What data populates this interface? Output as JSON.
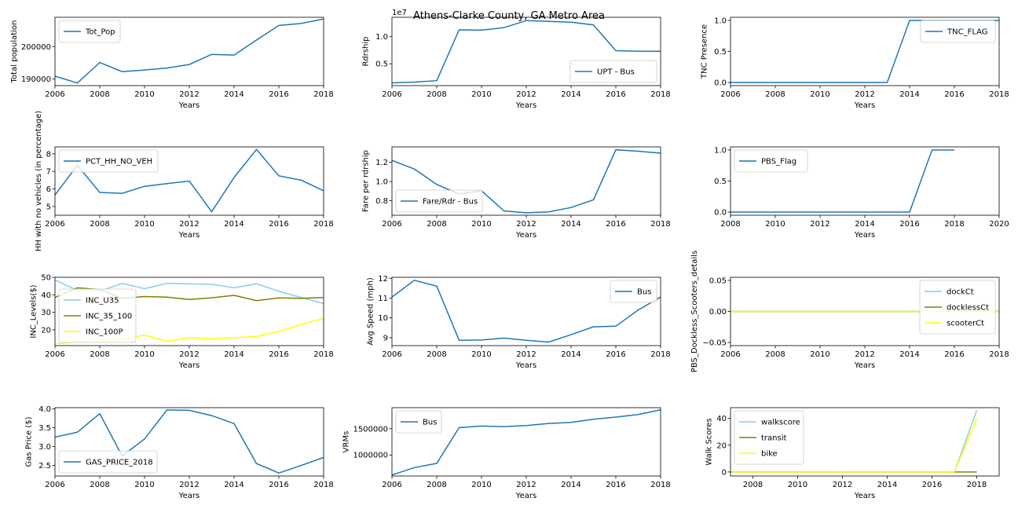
{
  "figure": {
    "title": "Athens-Clarke County, GA Metro Area"
  },
  "chart_data": [
    {
      "type": "line",
      "xlabel": "Years",
      "ylabel": "Total population",
      "xlim": [
        2006,
        2018
      ],
      "ylim": [
        188000,
        209000
      ],
      "xticks": [
        2006,
        2008,
        2010,
        2012,
        2014,
        2016,
        2018
      ],
      "yticks": [
        190000,
        200000
      ],
      "yticklabels": [
        "190000",
        "200000"
      ],
      "offset_label": "",
      "legend": "upper left",
      "series": [
        {
          "name": "Tot_Pop",
          "color": "#1f77b4",
          "x": [
            2006,
            2007,
            2008,
            2009,
            2010,
            2011,
            2012,
            2013,
            2014,
            2015,
            2016,
            2017,
            2018
          ],
          "y": [
            190900,
            188800,
            195100,
            192300,
            192800,
            193400,
            194500,
            197600,
            197400,
            202000,
            206500,
            207100,
            208500
          ]
        }
      ]
    },
    {
      "type": "line",
      "xlabel": "Years",
      "ylabel": "Rdrship",
      "xlim": [
        2006,
        2018
      ],
      "ylim": [
        0.1,
        1.35
      ],
      "xticks": [
        2006,
        2008,
        2010,
        2012,
        2014,
        2016,
        2018
      ],
      "yticks": [
        0.5,
        1.0
      ],
      "yticklabels": [
        "0.5",
        "1.0"
      ],
      "offset_label": "1e7",
      "legend": "lower right",
      "series": [
        {
          "name": "UPT - Bus",
          "color": "#1f77b4",
          "x": [
            2006,
            2007,
            2008,
            2009,
            2010,
            2011,
            2012,
            2013,
            2014,
            2015,
            2016,
            2017,
            2018
          ],
          "y": [
            0.15,
            0.165,
            0.19,
            1.12,
            1.115,
            1.16,
            1.29,
            1.275,
            1.26,
            1.21,
            0.74,
            0.73,
            0.73
          ]
        }
      ]
    },
    {
      "type": "line",
      "xlabel": "Years",
      "ylabel": "TNC Presence",
      "xlim": [
        2006,
        2018
      ],
      "ylim": [
        -0.05,
        1.05
      ],
      "xticks": [
        2006,
        2008,
        2010,
        2012,
        2014,
        2016,
        2018
      ],
      "yticks": [
        0.0,
        0.5,
        1.0
      ],
      "yticklabels": [
        "0.0",
        "0.5",
        "1.0"
      ],
      "offset_label": "",
      "legend": "upper right",
      "series": [
        {
          "name": "TNC_FLAG",
          "color": "#1f77b4",
          "x": [
            2006,
            2007,
            2008,
            2009,
            2010,
            2011,
            2012,
            2013,
            2014,
            2015,
            2016,
            2017,
            2018
          ],
          "y": [
            0,
            0,
            0,
            0,
            0,
            0,
            0,
            0,
            1,
            1,
            1,
            1,
            1
          ]
        }
      ]
    },
    {
      "type": "line",
      "xlabel": "Years",
      "ylabel": "HH with no vehicles (in percentage)",
      "xlim": [
        2006,
        2018
      ],
      "ylim": [
        4.5,
        8.4
      ],
      "xticks": [
        2006,
        2008,
        2010,
        2012,
        2014,
        2016,
        2018
      ],
      "yticks": [
        5,
        6,
        7,
        8
      ],
      "yticklabels": [
        "5",
        "6",
        "7",
        "8"
      ],
      "offset_label": "",
      "legend": "upper left",
      "series": [
        {
          "name": "PCT_HH_NO_VEH",
          "color": "#1f77b4",
          "x": [
            2006,
            2007,
            2008,
            2009,
            2010,
            2011,
            2012,
            2013,
            2014,
            2015,
            2016,
            2017,
            2018
          ],
          "y": [
            5.65,
            7.35,
            5.8,
            5.75,
            6.15,
            6.3,
            6.45,
            4.7,
            6.65,
            8.25,
            6.75,
            6.5,
            5.9
          ]
        }
      ]
    },
    {
      "type": "line",
      "xlabel": "Years",
      "ylabel": "Fare per rdrship",
      "xlim": [
        2006,
        2018
      ],
      "ylim": [
        0.65,
        1.36
      ],
      "xticks": [
        2006,
        2008,
        2010,
        2012,
        2014,
        2016,
        2018
      ],
      "yticks": [
        0.8,
        1.0,
        1.2
      ],
      "yticklabels": [
        "0.8",
        "1.0",
        "1.2"
      ],
      "offset_label": "",
      "legend": "lower left",
      "series": [
        {
          "name": "Fare/Rdr - Bus",
          "color": "#1f77b4",
          "x": [
            2006,
            2007,
            2008,
            2009,
            2010,
            2011,
            2012,
            2013,
            2014,
            2015,
            2016,
            2017,
            2018
          ],
          "y": [
            1.22,
            1.13,
            0.97,
            0.87,
            0.905,
            0.695,
            0.675,
            0.685,
            0.73,
            0.81,
            1.33,
            1.315,
            1.295
          ]
        }
      ]
    },
    {
      "type": "line",
      "xlabel": "Years",
      "ylabel": "",
      "xlim": [
        2008,
        2020
      ],
      "ylim": [
        -0.05,
        1.05
      ],
      "xticks": [
        2008,
        2010,
        2012,
        2014,
        2016,
        2018,
        2020
      ],
      "yticks": [
        0.0,
        0.5,
        1.0
      ],
      "yticklabels": [
        "0.0",
        "0.5",
        "1.0"
      ],
      "offset_label": "",
      "legend": "upper left",
      "series": [
        {
          "name": "PBS_Flag",
          "color": "#1f77b4",
          "x": [
            2008,
            2009,
            2010,
            2011,
            2012,
            2013,
            2014,
            2015,
            2016,
            2017,
            2018
          ],
          "y": [
            0,
            0,
            0,
            0,
            0,
            0,
            0,
            0,
            0,
            1,
            1
          ]
        }
      ]
    },
    {
      "type": "line",
      "xlabel": "Years",
      "ylabel": "INC_Levels($)",
      "xlim": [
        2006,
        2018
      ],
      "ylim": [
        11,
        50
      ],
      "xticks": [
        2006,
        2008,
        2010,
        2012,
        2014,
        2016,
        2018
      ],
      "yticks": [
        20,
        30,
        40,
        50
      ],
      "yticklabels": [
        "20",
        "30",
        "40",
        "50"
      ],
      "offset_label": "",
      "legend": "lower left",
      "series": [
        {
          "name": "INC_U35",
          "color": "#87ceeb",
          "x": [
            2006,
            2007,
            2008,
            2009,
            2010,
            2011,
            2012,
            2013,
            2014,
            2015,
            2016,
            2017,
            2018
          ],
          "y": [
            48.5,
            42.5,
            42.0,
            46.5,
            43.5,
            46.5,
            46.3,
            46.0,
            44.0,
            46.3,
            42.0,
            38.5,
            35.0
          ]
        },
        {
          "name": "INC_35_100",
          "color": "#808000",
          "x": [
            2006,
            2007,
            2008,
            2009,
            2010,
            2011,
            2012,
            2013,
            2014,
            2015,
            2016,
            2017,
            2018
          ],
          "y": [
            38.5,
            44.0,
            43.0,
            38.0,
            39.0,
            38.7,
            37.3,
            38.3,
            39.7,
            36.7,
            38.2,
            38.0,
            38.5
          ]
        },
        {
          "name": "INC_100P",
          "color": "#ffff00",
          "x": [
            2006,
            2007,
            2008,
            2009,
            2010,
            2011,
            2012,
            2013,
            2014,
            2015,
            2016,
            2017,
            2018
          ],
          "y": [
            12.0,
            13.0,
            14.0,
            14.5,
            17.0,
            13.5,
            15.5,
            14.8,
            15.5,
            16.2,
            19.0,
            23.0,
            26.5
          ]
        }
      ]
    },
    {
      "type": "line",
      "xlabel": "Years",
      "ylabel": "Avg Speed (mph)",
      "xlim": [
        2006,
        2018
      ],
      "ylim": [
        8.6,
        12.05
      ],
      "xticks": [
        2006,
        2008,
        2010,
        2012,
        2014,
        2016,
        2018
      ],
      "yticks": [
        9,
        10,
        11,
        12
      ],
      "yticklabels": [
        "9",
        "10",
        "11",
        "12"
      ],
      "offset_label": "",
      "legend": "upper right",
      "series": [
        {
          "name": "Bus",
          "color": "#1f77b4",
          "x": [
            2006,
            2007,
            2008,
            2009,
            2010,
            2011,
            2012,
            2013,
            2014,
            2015,
            2016,
            2017,
            2018
          ],
          "y": [
            11.05,
            11.9,
            11.6,
            8.87,
            8.88,
            8.98,
            8.87,
            8.78,
            9.15,
            9.55,
            9.58,
            10.4,
            11.05
          ]
        }
      ]
    },
    {
      "type": "line",
      "xlabel": "Years",
      "ylabel": "PBS_Dockless_Scooters_details",
      "xlim": [
        2006,
        2018
      ],
      "ylim": [
        -0.055,
        0.055
      ],
      "xticks": [
        2006,
        2008,
        2010,
        2012,
        2014,
        2016,
        2018
      ],
      "yticks": [
        -0.05,
        0.0,
        0.05
      ],
      "yticklabels": [
        "−0.05",
        "0.00",
        "0.05"
      ],
      "offset_label": "",
      "legend": "upper right",
      "series": [
        {
          "name": "dockCt",
          "color": "#87ceeb",
          "x": [
            2006,
            2007,
            2008,
            2009,
            2010,
            2011,
            2012,
            2013,
            2014,
            2015,
            2016,
            2017,
            2018
          ],
          "y": [
            0,
            0,
            0,
            0,
            0,
            0,
            0,
            0,
            0,
            0,
            0,
            0,
            0
          ]
        },
        {
          "name": "docklessCt",
          "color": "#808000",
          "x": [
            2006,
            2007,
            2008,
            2009,
            2010,
            2011,
            2012,
            2013,
            2014,
            2015,
            2016,
            2017,
            2018
          ],
          "y": [
            0,
            0,
            0,
            0,
            0,
            0,
            0,
            0,
            0,
            0,
            0,
            0,
            0
          ]
        },
        {
          "name": "scooterCt",
          "color": "#ffff00",
          "x": [
            2006,
            2007,
            2008,
            2009,
            2010,
            2011,
            2012,
            2013,
            2014,
            2015,
            2016,
            2017,
            2018
          ],
          "y": [
            0,
            0,
            0,
            0,
            0,
            0,
            0,
            0,
            0,
            0,
            0,
            0,
            0
          ]
        }
      ]
    },
    {
      "type": "line",
      "xlabel": "Years",
      "ylabel": "Gas Price ($)",
      "xlim": [
        2006,
        2018
      ],
      "ylim": [
        2.22,
        4.03
      ],
      "xticks": [
        2006,
        2008,
        2010,
        2012,
        2014,
        2016,
        2018
      ],
      "yticks": [
        2.5,
        3.0,
        3.5,
        4.0
      ],
      "yticklabels": [
        "2.5",
        "3.0",
        "3.5",
        "4.0"
      ],
      "offset_label": "",
      "legend": "lower left",
      "series": [
        {
          "name": "GAS_PRICE_2018",
          "color": "#1f77b4",
          "x": [
            2006,
            2007,
            2008,
            2009,
            2010,
            2011,
            2012,
            2013,
            2014,
            2015,
            2016,
            2017,
            2018
          ],
          "y": [
            3.25,
            3.38,
            3.87,
            2.75,
            3.2,
            3.97,
            3.96,
            3.82,
            3.61,
            2.55,
            2.3,
            2.5,
            2.71
          ]
        }
      ]
    },
    {
      "type": "line",
      "xlabel": "Years",
      "ylabel": "VRMs",
      "xlim": [
        2006,
        2018
      ],
      "ylim": [
        600000,
        1900000
      ],
      "xticks": [
        2006,
        2008,
        2010,
        2012,
        2014,
        2016,
        2018
      ],
      "yticks": [
        1000000,
        1500000
      ],
      "yticklabels": [
        "1000000",
        "1500000"
      ],
      "offset_label": "",
      "legend": "upper left",
      "series": [
        {
          "name": "Bus",
          "color": "#1f77b4",
          "x": [
            2006,
            2007,
            2008,
            2009,
            2010,
            2011,
            2012,
            2013,
            2014,
            2015,
            2016,
            2017,
            2018
          ],
          "y": [
            620000,
            760000,
            840000,
            1520000,
            1550000,
            1540000,
            1560000,
            1600000,
            1620000,
            1680000,
            1720000,
            1770000,
            1860000
          ]
        }
      ]
    },
    {
      "type": "line",
      "xlabel": "Years",
      "ylabel": "Walk Scores",
      "xlim": [
        2007,
        2019
      ],
      "ylim": [
        -3,
        48
      ],
      "xticks": [
        2008,
        2010,
        2012,
        2014,
        2016,
        2018
      ],
      "yticks": [
        0,
        20,
        40
      ],
      "yticklabels": [
        "0",
        "20",
        "40"
      ],
      "offset_label": "",
      "legend": "upper left",
      "series": [
        {
          "name": "walkscore",
          "color": "#87ceeb",
          "x": [
            2007,
            2008,
            2009,
            2010,
            2011,
            2012,
            2013,
            2014,
            2015,
            2016,
            2017,
            2018
          ],
          "y": [
            0,
            0,
            0,
            0,
            0,
            0,
            0,
            0,
            0,
            0,
            0,
            46
          ]
        },
        {
          "name": "transit",
          "color": "#808000",
          "x": [
            2007,
            2008,
            2009,
            2010,
            2011,
            2012,
            2013,
            2014,
            2015,
            2016,
            2017,
            2018
          ],
          "y": [
            0,
            0,
            0,
            0,
            0,
            0,
            0,
            0,
            0,
            0,
            0,
            0
          ]
        },
        {
          "name": "bike",
          "color": "#ffff00",
          "x": [
            2007,
            2008,
            2009,
            2010,
            2011,
            2012,
            2013,
            2014,
            2015,
            2016,
            2017,
            2018
          ],
          "y": [
            0,
            0,
            0,
            0,
            0,
            0,
            0,
            0,
            0,
            0,
            0,
            40
          ]
        }
      ]
    }
  ]
}
